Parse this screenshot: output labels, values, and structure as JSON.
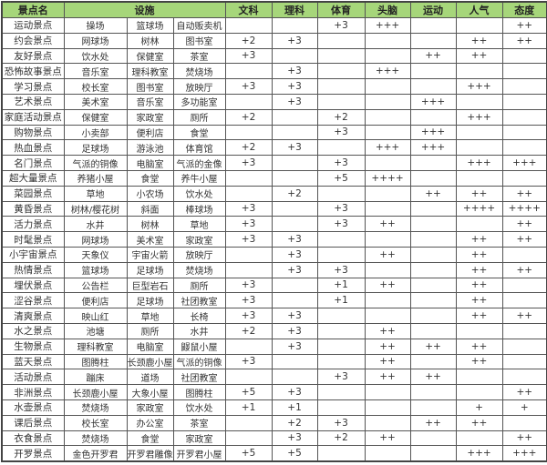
{
  "colors": {
    "header_bg": "#a6d67a",
    "border": "#555555"
  },
  "headers": {
    "name": "景点名",
    "facilities": "设施",
    "wenke": "文科",
    "like": "理科",
    "tiyu": "体育",
    "tounao": "头脑",
    "yundong": "运动",
    "renqi": "人气",
    "taidu": "态度"
  },
  "rows": [
    [
      "运动景点",
      "操场",
      "篮球场",
      "自动贩卖机",
      "",
      "",
      "+3",
      "+++",
      "",
      "",
      "++"
    ],
    [
      "约会景点",
      "网球场",
      "树林",
      "图书室",
      "+2",
      "+3",
      "",
      "",
      "",
      "++",
      "++"
    ],
    [
      "友好景点",
      "饮水处",
      "保健室",
      "茶室",
      "+3",
      "",
      "",
      "",
      "++",
      "++",
      ""
    ],
    [
      "恐怖故事景点",
      "音乐室",
      "理科教室",
      "焚烧场",
      "",
      "+3",
      "",
      "+++",
      "",
      "",
      ""
    ],
    [
      "学习景点",
      "校长室",
      "图书室",
      "放映厅",
      "+3",
      "+3",
      "",
      "",
      "",
      "+++",
      ""
    ],
    [
      "艺术景点",
      "美术室",
      "音乐室",
      "多功能室",
      "",
      "+3",
      "",
      "",
      "+++",
      "",
      ""
    ],
    [
      "家庭活动景点",
      "保健室",
      "家政室",
      "厕所",
      "+2",
      "",
      "+2",
      "",
      "",
      "+++",
      ""
    ],
    [
      "购物景点",
      "小卖部",
      "便利店",
      "食堂",
      "",
      "",
      "+3",
      "",
      "+++",
      "",
      ""
    ],
    [
      "热血景点",
      "足球场",
      "游泳池",
      "体育馆",
      "+2",
      "+3",
      "",
      "+++",
      "+++",
      "",
      ""
    ],
    [
      "名门景点",
      "气派的铜像",
      "电脑室",
      "气派的金像",
      "+3",
      "",
      "+3",
      "",
      "",
      "+++",
      "+++"
    ],
    [
      "超大量景点",
      "养猪小屋",
      "食堂",
      "养牛小屋",
      "",
      "",
      "+5",
      "++++",
      "",
      "",
      ""
    ],
    [
      "菜园景点",
      "草地",
      "小农场",
      "饮水处",
      "",
      "+2",
      "",
      "",
      "++",
      "++",
      "++"
    ],
    [
      "黄昏景点",
      "树林/樱花树",
      "斜面",
      "棒球场",
      "+3",
      "",
      "+3",
      "",
      "",
      "++++",
      "++++"
    ],
    [
      "活力景点",
      "水井",
      "树林",
      "草地",
      "+3",
      "",
      "+3",
      "++",
      "",
      "",
      "++"
    ],
    [
      "时髦景点",
      "网球场",
      "美术室",
      "家政室",
      "+3",
      "+3",
      "",
      "",
      "",
      "++",
      "++"
    ],
    [
      "小宇宙景点",
      "天象仪",
      "宇宙火箭",
      "放映厅",
      "",
      "+3",
      "",
      "++",
      "",
      "++",
      ""
    ],
    [
      "热情景点",
      "篮球场",
      "足球场",
      "焚烧场",
      "",
      "+3",
      "+3",
      "",
      "",
      "++",
      "++"
    ],
    [
      "埋伏景点",
      "公告栏",
      "巨型岩石",
      "厕所",
      "+3",
      "",
      "+1",
      "++",
      "",
      "++",
      ""
    ],
    [
      "涩谷景点",
      "便利店",
      "足球场",
      "社团教室",
      "+3",
      "",
      "+1",
      "",
      "",
      "++",
      ""
    ],
    [
      "清爽景点",
      "映山红",
      "草地",
      "长椅",
      "+3",
      "+3",
      "",
      "",
      "",
      "++",
      "++"
    ],
    [
      "水之景点",
      "池塘",
      "厕所",
      "水井",
      "+2",
      "+3",
      "",
      "++",
      "",
      "",
      ""
    ],
    [
      "生物景点",
      "理科教室",
      "电脑室",
      "鼹鼠小屋",
      "",
      "+3",
      "",
      "++",
      "++",
      "++",
      ""
    ],
    [
      "蓝天景点",
      "图腾柱",
      "长颈鹿小屋",
      "气派的铜像",
      "+3",
      "",
      "",
      "++",
      "",
      "++",
      ""
    ],
    [
      "活动景点",
      "蹦床",
      "道场",
      "社团教室",
      "",
      "",
      "+3",
      "++",
      "++",
      "",
      ""
    ],
    [
      "非洲景点",
      "长颈鹿小屋",
      "大象小屋",
      "图腾柱",
      "+5",
      "+3",
      "",
      "",
      "",
      "",
      "++"
    ],
    [
      "水壶景点",
      "焚烧场",
      "家政室",
      "饮水处",
      "+1",
      "+1",
      "",
      "",
      "",
      "+",
      "+"
    ],
    [
      "课后景点",
      "校长室",
      "办公室",
      "茶室",
      "",
      "+2",
      "+3",
      "",
      "++",
      "++",
      ""
    ],
    [
      "衣食景点",
      "焚烧场",
      "食堂",
      "家政室",
      "",
      "+3",
      "+2",
      "++",
      "",
      "",
      "++"
    ],
    [
      "开罗景点",
      "金色开罗君",
      "开罗君雕像",
      "开罗君小屋",
      "+5",
      "+5",
      "",
      "",
      "",
      "+++",
      "+++"
    ]
  ]
}
